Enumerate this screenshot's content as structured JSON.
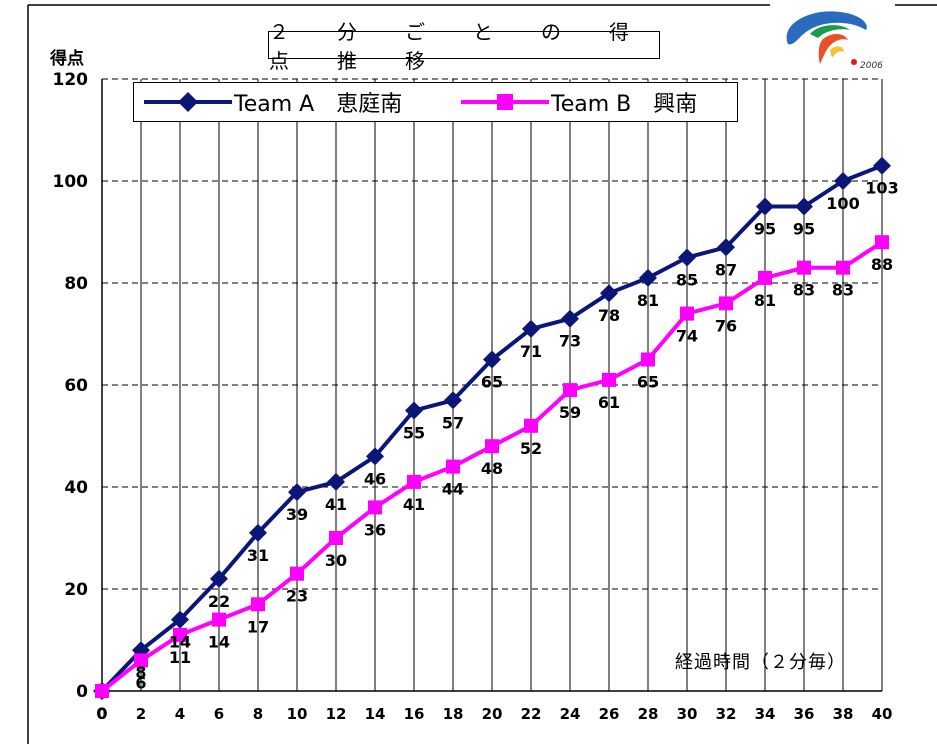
{
  "chart_data": {
    "type": "line",
    "title": "２　分　ご　と　の　得　点　推　移",
    "ylabel": "得点",
    "xlabel": "経過時間（２分毎）",
    "ylim": [
      0,
      120
    ],
    "y_ticks": [
      0,
      20,
      40,
      60,
      80,
      100,
      120
    ],
    "x": [
      0,
      2,
      4,
      6,
      8,
      10,
      12,
      14,
      16,
      18,
      20,
      22,
      24,
      26,
      28,
      30,
      32,
      34,
      36,
      38,
      40
    ],
    "grid": true,
    "legend_position": "top-left",
    "series": [
      {
        "name": "Team A　恵庭南",
        "color": "#0b1677",
        "marker": "diamond",
        "values": [
          0,
          8,
          14,
          22,
          31,
          39,
          41,
          46,
          55,
          57,
          65,
          71,
          73,
          78,
          81,
          85,
          87,
          95,
          95,
          100,
          103
        ]
      },
      {
        "name": "Team B　興南",
        "color": "#ff00ff",
        "marker": "square",
        "values": [
          0,
          6,
          11,
          14,
          17,
          23,
          30,
          36,
          41,
          44,
          48,
          52,
          59,
          61,
          65,
          74,
          76,
          81,
          83,
          83,
          88
        ]
      }
    ]
  },
  "logo": {
    "caption": "2006"
  }
}
